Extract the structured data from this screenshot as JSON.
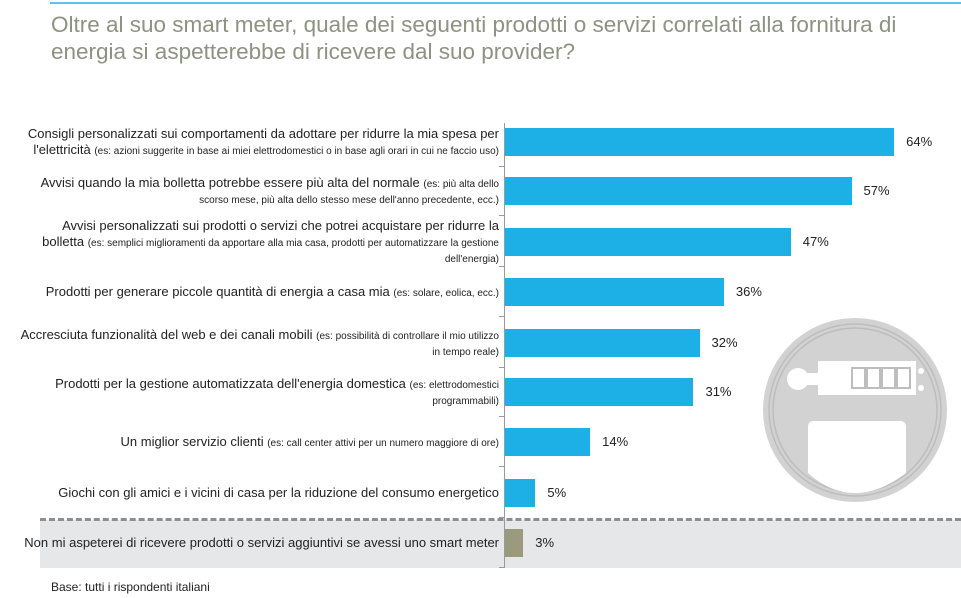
{
  "title": "Oltre al suo smart meter, quale dei seguenti prodotti o servizi correlati alla fornitura di energia si aspetterebbe di ricevere dal suo provider?",
  "base_note": "Base: tutti i rispondenti italiani",
  "colors": {
    "bar": "#1cb0e6",
    "bar_other": "#9c9a7c",
    "title": "#8e9282",
    "band": "#e6e7e8"
  },
  "icons": [
    "smart-meter-icon"
  ],
  "chart_data": {
    "type": "bar",
    "orientation": "horizontal",
    "xlim": [
      0,
      64
    ],
    "grid": false,
    "categories": [
      {
        "main": "Consigli personalizzati sui comportamenti da adottare per ridurre la mia spesa per l'elettricità",
        "sub": "(es: azioni suggerite in base ai miei elettrodomestici o in base agli orari in cui ne faccio uso)"
      },
      {
        "main": "Avvisi quando la mia bolletta potrebbe essere più alta del normale",
        "sub": "(es: più alta dello scorso mese, più alta dello stesso mese dell'anno precedente, ecc.)"
      },
      {
        "main": "Avvisi personalizzati sui prodotti o servizi che potrei acquistare per ridurre la bolletta",
        "sub": "(es: semplici miglioramenti da apportare alla mia casa, prodotti per automatizzare la gestione dell'energia)"
      },
      {
        "main": "Prodotti per generare piccole quantità di energia a casa mia",
        "sub": "(es: solare, eolica, ecc.)"
      },
      {
        "main": "Accresciuta funzionalità del web e dei canali mobili",
        "sub": "(es: possibilità di controllare il mio utilizzo in tempo reale)"
      },
      {
        "main": "Prodotti per la gestione automatizzata dell'energia domestica",
        "sub": "(es: elettrodomestici programmabili)"
      },
      {
        "main": "Un miglior servizio clienti",
        "sub": "(es: call center attivi per un numero maggiore di ore)"
      },
      {
        "main": "Giochi  con gli amici e i vicini di casa per la riduzione del consumo energetico",
        "sub": ""
      },
      {
        "main": "Non mi aspeterei di ricevere prodotti o servizi aggiuntivi se avessi uno smart meter",
        "sub": ""
      }
    ],
    "values": [
      64,
      57,
      47,
      36,
      32,
      31,
      14,
      5,
      3
    ],
    "data_labels": [
      "64%",
      "57%",
      "47%",
      "36%",
      "32%",
      "31%",
      "14%",
      "5%",
      "3%"
    ]
  }
}
